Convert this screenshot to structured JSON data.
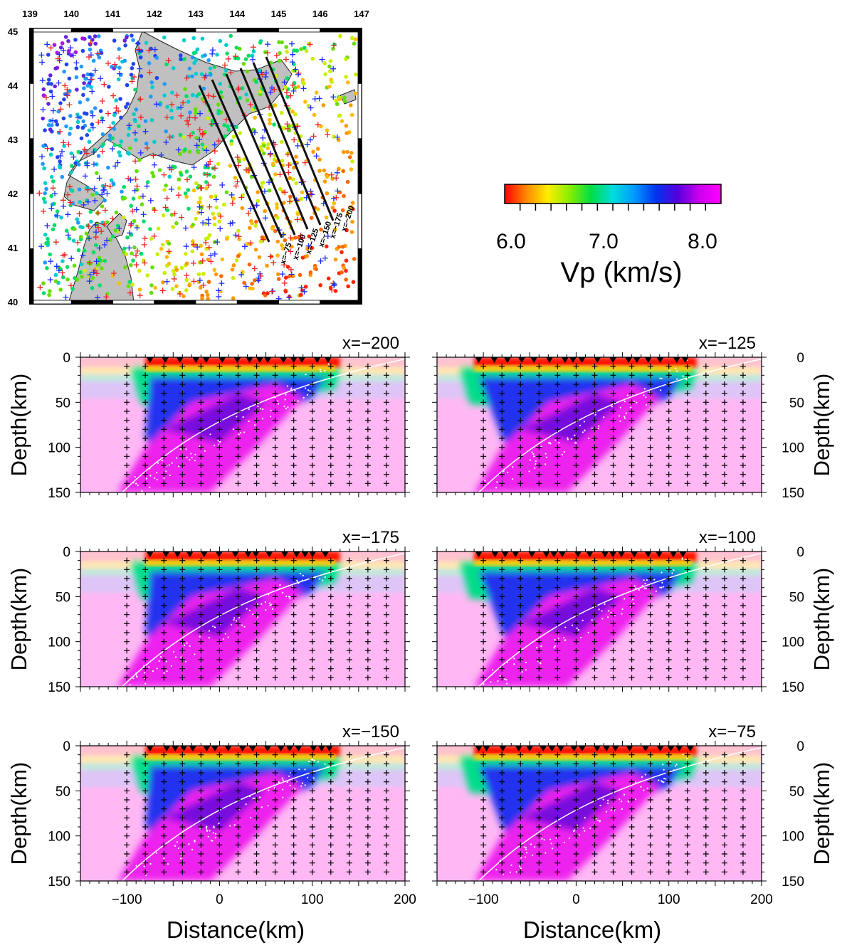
{
  "map": {
    "lon_ticks": [
      "139",
      "140",
      "141",
      "142",
      "143",
      "144",
      "145",
      "146",
      "147"
    ],
    "lat_ticks": [
      "45",
      "44",
      "43",
      "42",
      "41",
      "40"
    ],
    "profile_labels": [
      "x=-75",
      "x=-100",
      "x=-125",
      "x=-150",
      "x=-175",
      "x=-200"
    ]
  },
  "colorbar": {
    "tick_labels": [
      "6.0",
      "7.0",
      "8.0"
    ],
    "title": "Vp (km/s)",
    "colors": [
      "#ff0000",
      "#ff8800",
      "#ffee00",
      "#88ee00",
      "#00dd44",
      "#00dddd",
      "#0099ff",
      "#0033ee",
      "#5500dd",
      "#cc00ee",
      "#ff00ff"
    ]
  },
  "axis": {
    "depth_label": "Depth(km)",
    "distance_label": "Distance(km)",
    "depth_ticks": [
      "0",
      "50",
      "100",
      "150"
    ],
    "distance_ticks": [
      "-100",
      "0",
      "100",
      "200"
    ]
  },
  "chart_data": [
    {
      "type": "heatmap",
      "title": "x=-200",
      "xlabel": "",
      "ylabel": "Depth(km)",
      "xlim": [
        -150,
        200
      ],
      "ylim": [
        150,
        0
      ]
    },
    {
      "type": "heatmap",
      "title": "x=-125",
      "xlabel": "",
      "ylabel": "Depth(km)",
      "xlim": [
        -150,
        200
      ],
      "ylim": [
        150,
        0
      ]
    },
    {
      "type": "heatmap",
      "title": "x=-175",
      "xlabel": "",
      "ylabel": "Depth(km)",
      "xlim": [
        -150,
        200
      ],
      "ylim": [
        150,
        0
      ]
    },
    {
      "type": "heatmap",
      "title": "x=-100",
      "xlabel": "",
      "ylabel": "Depth(km)",
      "xlim": [
        -150,
        200
      ],
      "ylim": [
        150,
        0
      ]
    },
    {
      "type": "heatmap",
      "title": "x=-150",
      "xlabel": "Distance(km)",
      "ylabel": "Depth(km)",
      "xlim": [
        -150,
        200
      ],
      "ylim": [
        150,
        0
      ]
    },
    {
      "type": "heatmap",
      "title": "x=-75",
      "xlabel": "Distance(km)",
      "ylabel": "Depth(km)",
      "xlim": [
        -150,
        200
      ],
      "ylim": [
        150,
        0
      ]
    }
  ]
}
